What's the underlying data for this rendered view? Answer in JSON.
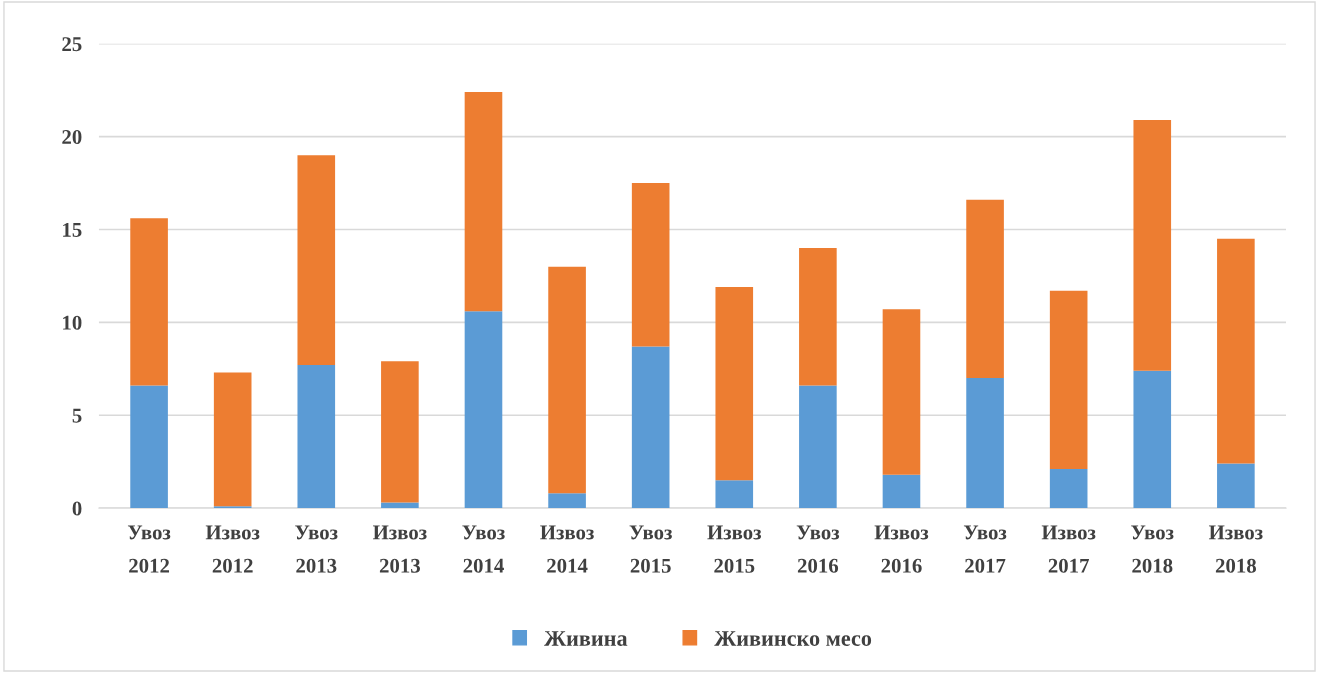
{
  "chart_data": {
    "type": "bar",
    "stacked": true,
    "categories": [
      "Увоз\n2012",
      "Извоз\n2012",
      "Увоз\n2013",
      "Извоз\n2013",
      "Увоз\n2014",
      "Извоз\n2014",
      "Увоз\n2015",
      "Извоз\n2015",
      "Увоз\n2016",
      "Извоз\n2016",
      "Увоз\n2017",
      "Извоз\n2017",
      "Увоз\n2018",
      "Извоз\n2018"
    ],
    "series": [
      {
        "name": "Живина",
        "color": "#5b9bd5",
        "values": [
          6.6,
          0.1,
          7.7,
          0.3,
          10.6,
          0.8,
          8.7,
          1.5,
          6.6,
          1.8,
          7.0,
          2.1,
          7.4,
          2.4
        ]
      },
      {
        "name": "Живинско месо",
        "color": "#ed7d31",
        "values": [
          9.0,
          7.2,
          11.3,
          7.6,
          11.8,
          12.2,
          8.8,
          10.4,
          7.4,
          8.9,
          9.6,
          9.6,
          13.5,
          12.1
        ]
      }
    ],
    "ylim": [
      0,
      25
    ],
    "yticks": [
      0,
      5,
      10,
      15,
      20,
      25
    ],
    "grid": "y",
    "legend": "bottom"
  }
}
